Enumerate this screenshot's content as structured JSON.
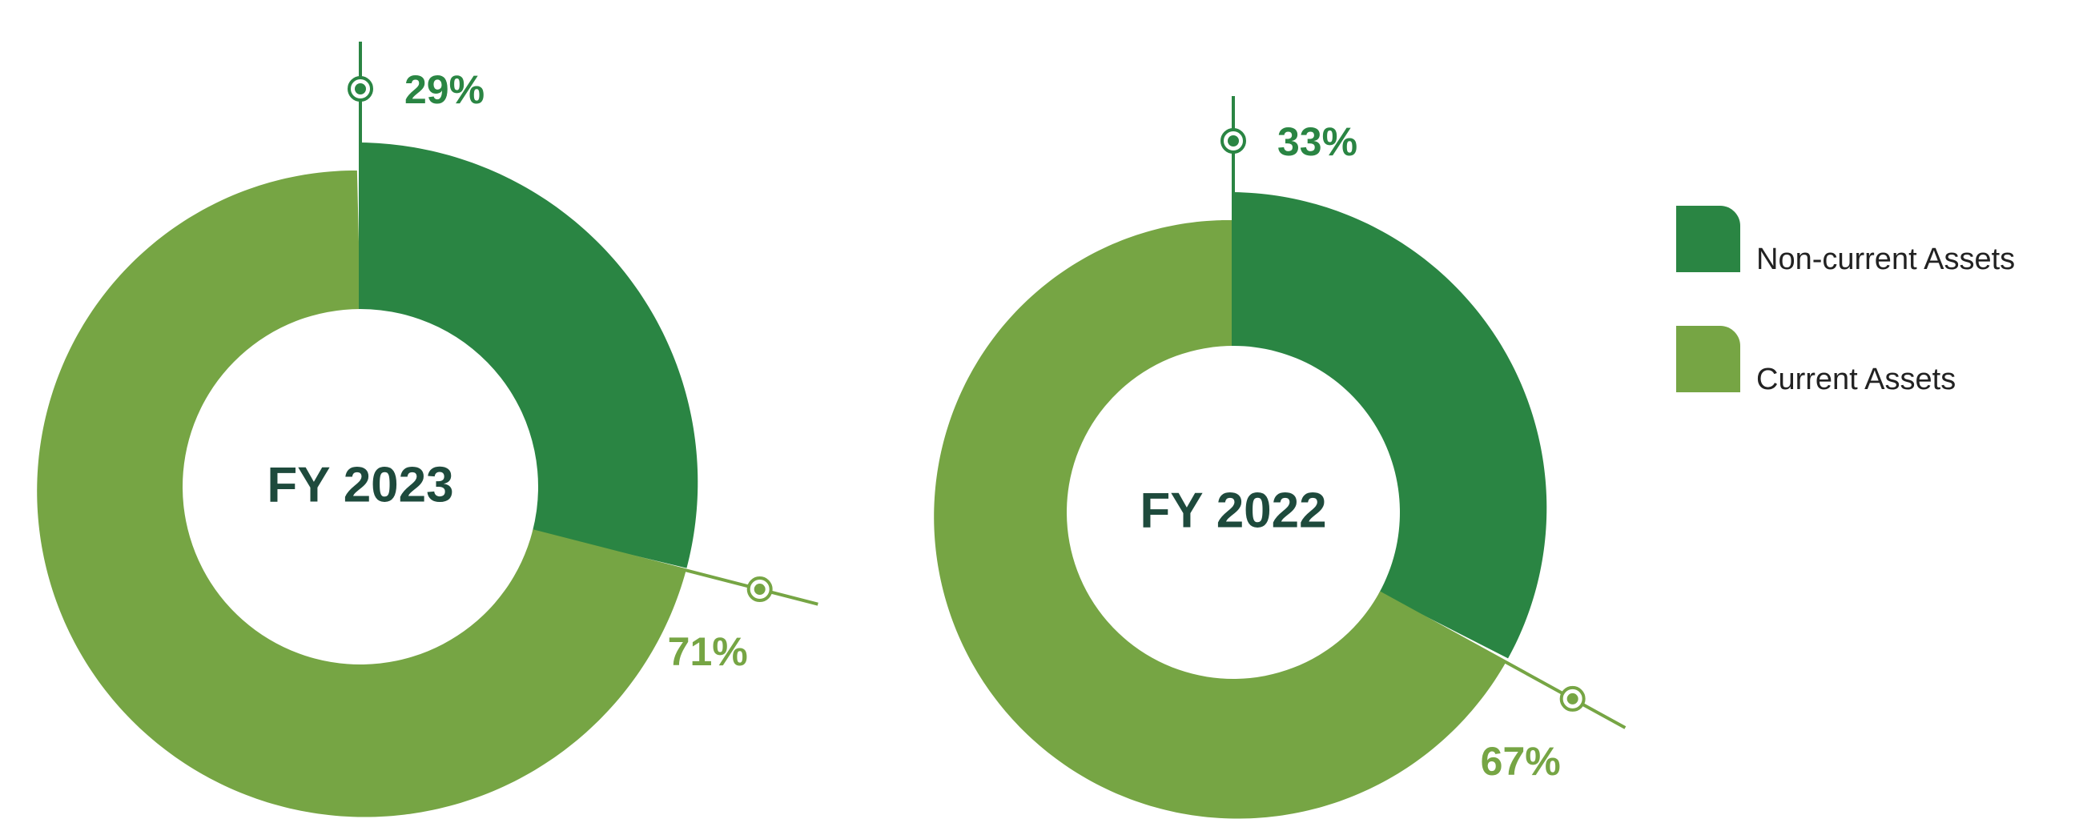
{
  "chart_data": {
    "type": "pie",
    "legend": {
      "placement": "right",
      "items": [
        {
          "label": "Non-current Assets",
          "color": "#2a8543"
        },
        {
          "label": "Current Assets",
          "color": "#76a544"
        }
      ]
    },
    "charts": [
      {
        "center_label": "FY 2023",
        "slices": [
          {
            "category": "Non-current Assets",
            "value": 29,
            "label": "29%",
            "color": "#2a8543"
          },
          {
            "category": "Current Assets",
            "value": 71,
            "label": "71%",
            "color": "#76a544"
          }
        ]
      },
      {
        "center_label": "FY 2022",
        "slices": [
          {
            "category": "Non-current Assets",
            "value": 33,
            "label": "33%",
            "color": "#2a8543"
          },
          {
            "category": "Current Assets",
            "value": 67,
            "label": "67%",
            "color": "#76a544"
          }
        ]
      }
    ]
  }
}
